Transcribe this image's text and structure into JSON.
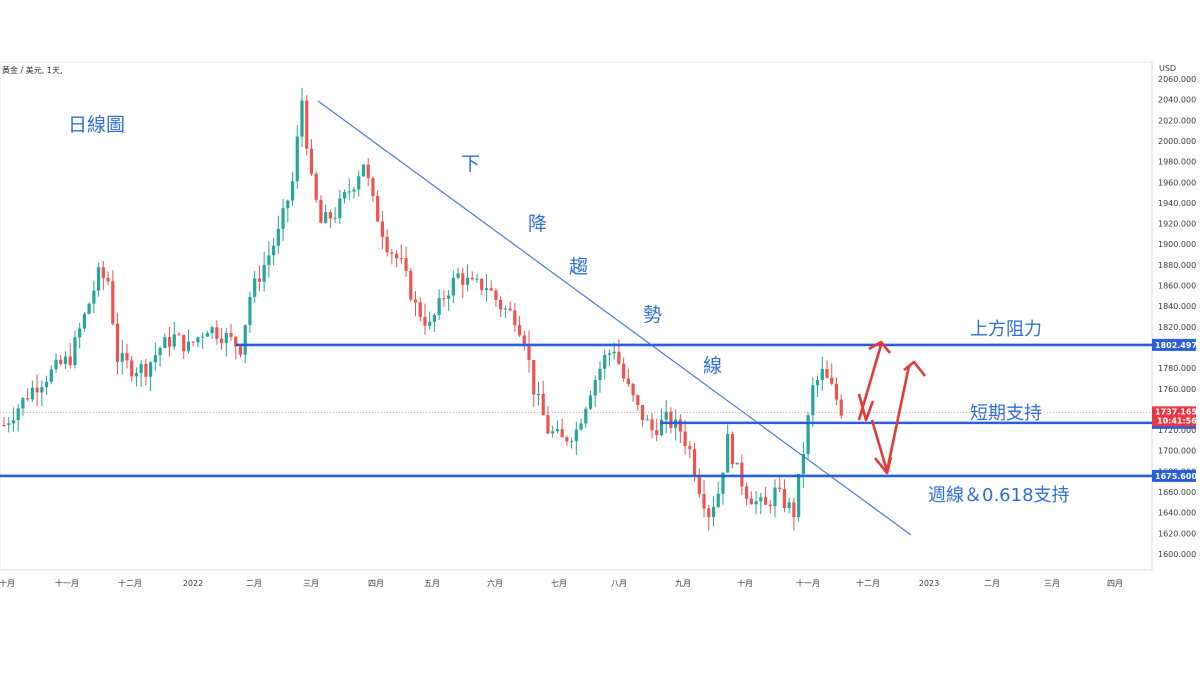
{
  "symbol_label": "黃金 / 美元, 1天,",
  "currency": "USD",
  "chart_data": {
    "type": "candlestick",
    "title": "",
    "ylim": [
      1590,
      2080
    ],
    "y_ticks": [
      "2060.000",
      "2040.000",
      "2020.000",
      "2000.000",
      "1980.000",
      "1960.000",
      "1940.000",
      "1920.000",
      "1900.000",
      "1880.000",
      "1860.000",
      "1840.000",
      "1820.000",
      "1800.000",
      "1780.000",
      "1760.000",
      "1740.000",
      "1720.000",
      "1700.000",
      "1680.000",
      "1660.000",
      "1640.000",
      "1620.000",
      "1600.000"
    ],
    "x_ticks": [
      "十月",
      "十一月",
      "十二月",
      "2022",
      "二月",
      "三月",
      "四月",
      "五月",
      "六月",
      "七月",
      "八月",
      "九月",
      "十月",
      "十一月",
      "十二月",
      "2023",
      "二月",
      "三月",
      "四月"
    ],
    "price_path": [
      [
        0,
        1725
      ],
      [
        6,
        1760
      ],
      [
        11,
        1780
      ],
      [
        14,
        1790
      ],
      [
        17,
        1830
      ],
      [
        20,
        1870
      ],
      [
        22,
        1865
      ],
      [
        24,
        1790
      ],
      [
        27,
        1780
      ],
      [
        30,
        1780
      ],
      [
        33,
        1800
      ],
      [
        36,
        1810
      ],
      [
        39,
        1800
      ],
      [
        43,
        1820
      ],
      [
        47,
        1810
      ],
      [
        50,
        1800
      ],
      [
        52,
        1850
      ],
      [
        55,
        1880
      ],
      [
        58,
        1910
      ],
      [
        61,
        1960
      ],
      [
        63,
        2040
      ],
      [
        65,
        1960
      ],
      [
        67,
        1920
      ],
      [
        70,
        1930
      ],
      [
        74,
        1960
      ],
      [
        76,
        1980
      ],
      [
        78,
        1940
      ],
      [
        81,
        1900
      ],
      [
        84,
        1880
      ],
      [
        87,
        1840
      ],
      [
        90,
        1820
      ],
      [
        93,
        1850
      ],
      [
        96,
        1870
      ],
      [
        99,
        1860
      ],
      [
        102,
        1860
      ],
      [
        105,
        1840
      ],
      [
        108,
        1830
      ],
      [
        110,
        1810
      ],
      [
        112,
        1760
      ],
      [
        115,
        1720
      ],
      [
        118,
        1710
      ],
      [
        121,
        1720
      ],
      [
        124,
        1760
      ],
      [
        127,
        1790
      ],
      [
        129,
        1800
      ],
      [
        131,
        1770
      ],
      [
        134,
        1740
      ],
      [
        137,
        1720
      ],
      [
        140,
        1730
      ],
      [
        143,
        1720
      ],
      [
        145,
        1700
      ],
      [
        147,
        1665
      ],
      [
        149,
        1640
      ],
      [
        151,
        1660
      ],
      [
        153,
        1710
      ],
      [
        155,
        1680
      ],
      [
        157,
        1660
      ],
      [
        159,
        1650
      ],
      [
        161,
        1645
      ],
      [
        163,
        1660
      ],
      [
        165,
        1650
      ],
      [
        167,
        1640
      ],
      [
        169,
        1700
      ],
      [
        171,
        1760
      ],
      [
        173,
        1775
      ],
      [
        175,
        1760
      ],
      [
        177,
        1740
      ]
    ],
    "trendline": {
      "from": [
        2021.62,
        2043
      ],
      "to": [
        2022.98,
        1618
      ]
    },
    "levels": [
      {
        "name": "上方阻力",
        "value": 1802.497,
        "label": "1802.497"
      },
      {
        "name": "短期支持",
        "value": 1726.996,
        "label": "1726.996"
      },
      {
        "name": "週線&0.618支持",
        "value": 1675.6,
        "label": "1675.600"
      }
    ],
    "last_price": {
      "value": 1737.165,
      "label": "1737.165",
      "timer": "10:41:56"
    }
  },
  "annotations": {
    "chart_title": "日線圖",
    "trend_chars": [
      "下",
      "降",
      "趨",
      "勢",
      "線"
    ],
    "resistance": "上方阻力",
    "short_support": "短期支持",
    "weekly_support": "週線＆0.618支持"
  },
  "colors": {
    "up": "#26a69a",
    "down": "#ef5350",
    "line": "#2b5fd9",
    "trend": "#4a7be0",
    "arrow": "#e53935",
    "price_tag": "#e53945"
  }
}
